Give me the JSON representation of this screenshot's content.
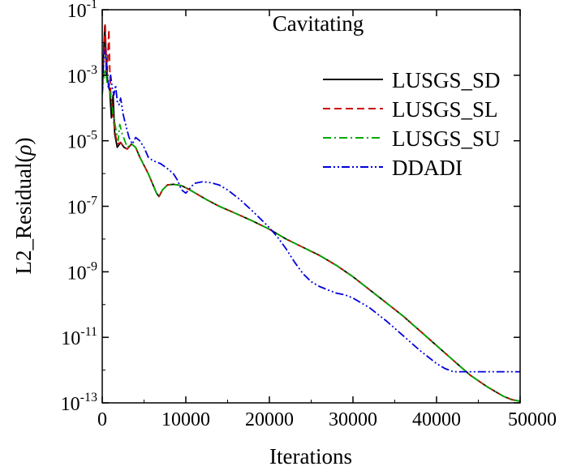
{
  "chart_data": {
    "type": "line",
    "title": "Cavitating",
    "xlabel": "Iterations",
    "ylabel": "L2_Residual(ρ)",
    "ylabel_parts": {
      "prefix": "L2_Residual(",
      "symbol": "ρ",
      "suffix": ")"
    },
    "xscale": "linear",
    "yscale": "log",
    "xlim": [
      0,
      50000
    ],
    "ylim_exp": [
      -13,
      -1
    ],
    "x_ticks": [
      0,
      10000,
      20000,
      30000,
      40000,
      50000
    ],
    "x_tick_labels": [
      "0",
      "10000",
      "20000",
      "30000",
      "40000",
      "50000"
    ],
    "y_ticks_exp": [
      -1,
      -3,
      -5,
      -7,
      -9,
      -11,
      -13
    ],
    "y_tick_labels": [
      {
        "base": "10",
        "exp": "-1"
      },
      {
        "base": "10",
        "exp": "-3"
      },
      {
        "base": "10",
        "exp": "-5"
      },
      {
        "base": "10",
        "exp": "-7"
      },
      {
        "base": "10",
        "exp": "-9"
      },
      {
        "base": "10",
        "exp": "-11"
      },
      {
        "base": "10",
        "exp": "-13"
      }
    ],
    "legend_position": "upper-right",
    "series": [
      {
        "name": "LUSGS_SD",
        "color": "#000000",
        "dash": "solid",
        "points": [
          [
            0,
            -3.5
          ],
          [
            150,
            -2.5
          ],
          [
            300,
            -1.5
          ],
          [
            400,
            -2.0
          ],
          [
            500,
            -3.0
          ],
          [
            700,
            -3.2
          ],
          [
            900,
            -3.5
          ],
          [
            1100,
            -4.3
          ],
          [
            1300,
            -3.6
          ],
          [
            1500,
            -4.8
          ],
          [
            1800,
            -5.2
          ],
          [
            2200,
            -5.05
          ],
          [
            2600,
            -5.2
          ],
          [
            3000,
            -5.25
          ],
          [
            3500,
            -5.1
          ],
          [
            4000,
            -5.2
          ],
          [
            4500,
            -5.5
          ],
          [
            5000,
            -5.75
          ],
          [
            5500,
            -6.0
          ],
          [
            6000,
            -6.3
          ],
          [
            6500,
            -6.6
          ],
          [
            6800,
            -6.7
          ],
          [
            7200,
            -6.5
          ],
          [
            7800,
            -6.35
          ],
          [
            8500,
            -6.33
          ],
          [
            9500,
            -6.37
          ],
          [
            10500,
            -6.5
          ],
          [
            11500,
            -6.65
          ],
          [
            12500,
            -6.8
          ],
          [
            14000,
            -7.0
          ],
          [
            16000,
            -7.22
          ],
          [
            18000,
            -7.45
          ],
          [
            20000,
            -7.7
          ],
          [
            22000,
            -8.0
          ],
          [
            24000,
            -8.25
          ],
          [
            26000,
            -8.5
          ],
          [
            28000,
            -8.8
          ],
          [
            30000,
            -9.15
          ],
          [
            32000,
            -9.55
          ],
          [
            34000,
            -9.95
          ],
          [
            36000,
            -10.35
          ],
          [
            38000,
            -10.8
          ],
          [
            40000,
            -11.25
          ],
          [
            42000,
            -11.7
          ],
          [
            44000,
            -12.15
          ],
          [
            46000,
            -12.5
          ],
          [
            48000,
            -12.8
          ],
          [
            49000,
            -12.9
          ],
          [
            50000,
            -12.95
          ]
        ]
      },
      {
        "name": "LUSGS_SL",
        "color": "#cc0000",
        "dash": "dashed",
        "points": [
          [
            0,
            -3.4
          ],
          [
            200,
            -2.3
          ],
          [
            350,
            -1.4
          ],
          [
            450,
            -2.2
          ],
          [
            600,
            -2.9
          ],
          [
            800,
            -1.6
          ],
          [
            900,
            -2.8
          ],
          [
            1000,
            -3.5
          ],
          [
            1200,
            -4.0
          ],
          [
            1500,
            -4.7
          ],
          [
            1800,
            -5.1
          ],
          [
            2200,
            -5.05
          ],
          [
            2600,
            -5.2
          ],
          [
            3000,
            -5.25
          ],
          [
            3500,
            -5.1
          ],
          [
            4000,
            -5.2
          ],
          [
            4500,
            -5.5
          ],
          [
            5000,
            -5.75
          ],
          [
            5500,
            -6.0
          ],
          [
            6000,
            -6.3
          ],
          [
            6500,
            -6.6
          ],
          [
            6800,
            -6.7
          ],
          [
            7200,
            -6.5
          ],
          [
            7800,
            -6.35
          ],
          [
            8500,
            -6.33
          ],
          [
            9500,
            -6.37
          ],
          [
            10500,
            -6.5
          ],
          [
            11500,
            -6.65
          ],
          [
            12500,
            -6.8
          ],
          [
            14000,
            -7.0
          ],
          [
            16000,
            -7.22
          ],
          [
            18000,
            -7.45
          ],
          [
            20000,
            -7.7
          ],
          [
            22000,
            -8.0
          ],
          [
            24000,
            -8.25
          ],
          [
            26000,
            -8.5
          ],
          [
            28000,
            -8.8
          ],
          [
            30000,
            -9.15
          ],
          [
            32000,
            -9.55
          ],
          [
            34000,
            -9.95
          ],
          [
            36000,
            -10.35
          ],
          [
            38000,
            -10.8
          ],
          [
            40000,
            -11.25
          ],
          [
            42000,
            -11.7
          ],
          [
            44000,
            -12.15
          ],
          [
            46000,
            -12.5
          ],
          [
            48000,
            -12.8
          ],
          [
            49000,
            -12.9
          ],
          [
            50000,
            -12.95
          ]
        ]
      },
      {
        "name": "LUSGS_SU",
        "color": "#00aa00",
        "dash": "dashdot",
        "points": [
          [
            0,
            -3.6
          ],
          [
            200,
            -3.0
          ],
          [
            400,
            -2.8
          ],
          [
            600,
            -3.3
          ],
          [
            800,
            -3.4
          ],
          [
            1000,
            -3.6
          ],
          [
            1300,
            -4.2
          ],
          [
            1600,
            -4.6
          ],
          [
            1900,
            -5.0
          ],
          [
            2100,
            -4.5
          ],
          [
            2400,
            -4.8
          ],
          [
            2700,
            -5.0
          ],
          [
            3000,
            -5.2
          ],
          [
            3500,
            -5.1
          ],
          [
            4000,
            -5.2
          ],
          [
            4500,
            -5.5
          ],
          [
            5000,
            -5.75
          ],
          [
            5500,
            -6.0
          ],
          [
            6000,
            -6.3
          ],
          [
            6500,
            -6.6
          ],
          [
            6800,
            -6.7
          ],
          [
            7200,
            -6.5
          ],
          [
            7800,
            -6.35
          ],
          [
            8500,
            -6.33
          ],
          [
            9500,
            -6.37
          ],
          [
            10500,
            -6.5
          ],
          [
            11500,
            -6.65
          ],
          [
            12500,
            -6.8
          ],
          [
            14000,
            -7.0
          ],
          [
            16000,
            -7.22
          ],
          [
            18000,
            -7.45
          ],
          [
            20000,
            -7.7
          ],
          [
            22000,
            -8.0
          ],
          [
            24000,
            -8.25
          ],
          [
            26000,
            -8.5
          ],
          [
            28000,
            -8.8
          ],
          [
            30000,
            -9.15
          ],
          [
            32000,
            -9.55
          ],
          [
            34000,
            -9.95
          ],
          [
            36000,
            -10.35
          ],
          [
            38000,
            -10.8
          ],
          [
            40000,
            -11.25
          ],
          [
            42000,
            -11.7
          ],
          [
            44000,
            -12.15
          ],
          [
            46000,
            -12.5
          ],
          [
            48000,
            -12.8
          ],
          [
            49000,
            -12.9
          ],
          [
            50000,
            -12.95
          ]
        ]
      },
      {
        "name": "DDADI",
        "color": "#0000dd",
        "dash": "dashdotdot",
        "points": [
          [
            0,
            -3.5
          ],
          [
            200,
            -2.5
          ],
          [
            400,
            -2.2
          ],
          [
            600,
            -3.0
          ],
          [
            800,
            -3.4
          ],
          [
            1000,
            -3.0
          ],
          [
            1200,
            -3.4
          ],
          [
            1400,
            -3.6
          ],
          [
            1600,
            -3.3
          ],
          [
            1800,
            -3.8
          ],
          [
            2000,
            -3.9
          ],
          [
            2200,
            -3.7
          ],
          [
            2500,
            -4.2
          ],
          [
            2800,
            -4.5
          ],
          [
            3200,
            -4.9
          ],
          [
            3600,
            -5.1
          ],
          [
            4000,
            -4.9
          ],
          [
            4500,
            -5.0
          ],
          [
            5000,
            -5.2
          ],
          [
            5500,
            -5.5
          ],
          [
            6000,
            -5.6
          ],
          [
            7000,
            -5.7
          ],
          [
            7800,
            -5.85
          ],
          [
            8500,
            -6.0
          ],
          [
            9000,
            -6.2
          ],
          [
            9500,
            -6.5
          ],
          [
            10000,
            -6.6
          ],
          [
            10500,
            -6.45
          ],
          [
            11000,
            -6.3
          ],
          [
            12000,
            -6.25
          ],
          [
            13000,
            -6.28
          ],
          [
            14000,
            -6.35
          ],
          [
            15000,
            -6.5
          ],
          [
            16500,
            -6.8
          ],
          [
            18000,
            -7.15
          ],
          [
            20000,
            -7.65
          ],
          [
            21000,
            -7.95
          ],
          [
            22000,
            -8.3
          ],
          [
            23000,
            -8.7
          ],
          [
            24000,
            -9.05
          ],
          [
            25000,
            -9.3
          ],
          [
            26000,
            -9.45
          ],
          [
            27000,
            -9.55
          ],
          [
            28000,
            -9.65
          ],
          [
            29000,
            -9.7
          ],
          [
            30000,
            -9.8
          ],
          [
            32000,
            -10.1
          ],
          [
            34000,
            -10.5
          ],
          [
            36000,
            -10.95
          ],
          [
            38000,
            -11.4
          ],
          [
            40000,
            -11.8
          ],
          [
            41000,
            -11.95
          ],
          [
            42000,
            -12.05
          ],
          [
            44000,
            -12.05
          ],
          [
            46000,
            -12.05
          ],
          [
            48000,
            -12.05
          ],
          [
            50000,
            -12.05
          ]
        ]
      }
    ]
  }
}
